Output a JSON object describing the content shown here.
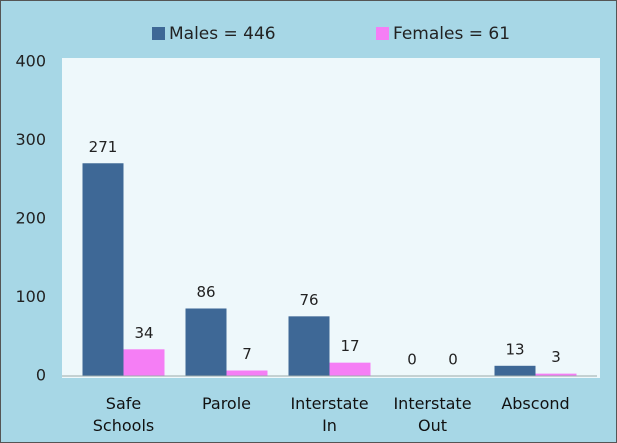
{
  "chart_data": {
    "type": "bar",
    "categories": [
      "Safe Schools",
      "Parole",
      "Interstate In",
      "Interstate Out",
      "Abscond"
    ],
    "series": [
      {
        "name": "Males = 446",
        "color": "#3e6896",
        "values": [
          271,
          86,
          76,
          0,
          13
        ]
      },
      {
        "name": "Females = 61",
        "color": "#f57ef5",
        "values": [
          34,
          7,
          17,
          0,
          3
        ]
      }
    ],
    "ylim": [
      0,
      400
    ],
    "yticks": [
      0,
      100,
      200,
      300,
      400
    ],
    "grid": false,
    "legend": "top"
  }
}
